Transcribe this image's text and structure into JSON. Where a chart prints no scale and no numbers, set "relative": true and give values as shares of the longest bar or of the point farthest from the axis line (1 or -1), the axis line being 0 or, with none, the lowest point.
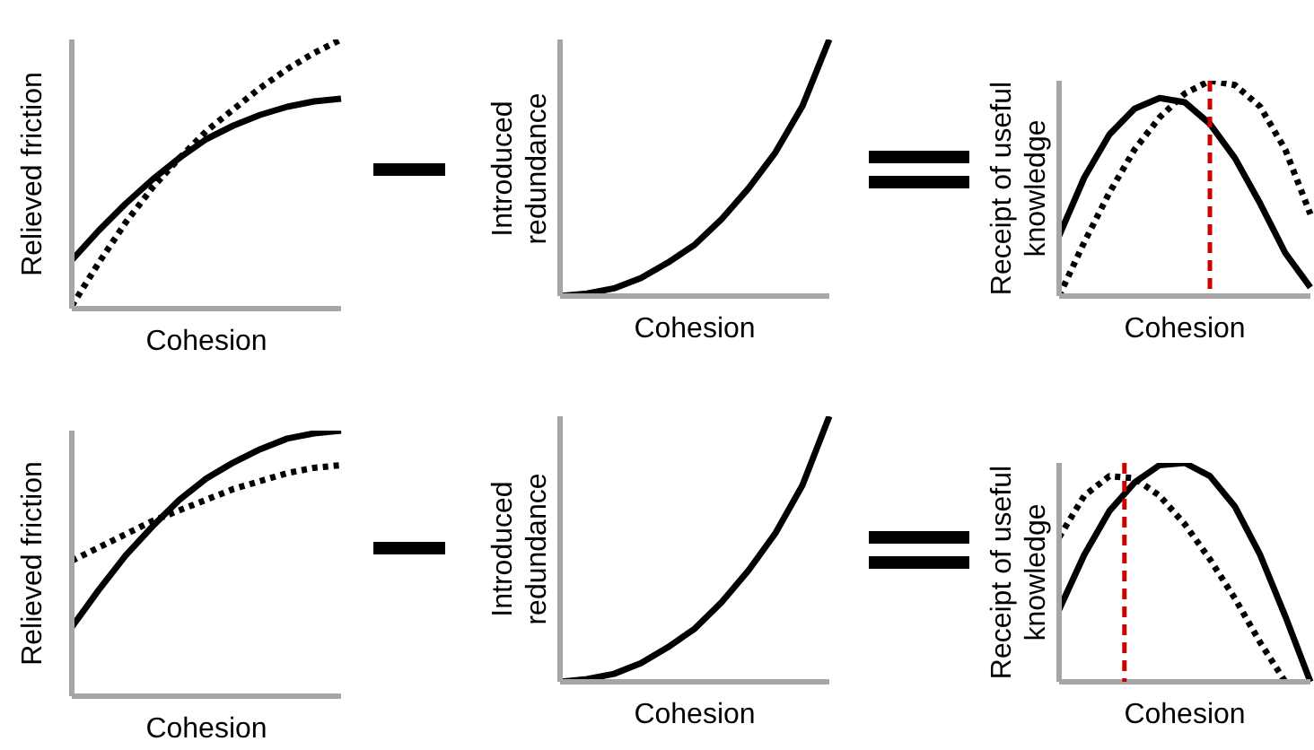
{
  "chart_data": [
    {
      "type": "line",
      "relative": true,
      "categories": [
        null,
        null,
        null,
        null,
        null,
        null,
        null,
        null,
        null,
        null,
        null
      ],
      "xlabel": "Cohesion",
      "ylabel": "Relieved friction",
      "series": [
        {
          "color": "#000000",
          "line_style": "solid",
          "values": [
            0.18,
            0.29,
            0.39,
            0.48,
            0.56,
            0.63,
            0.68,
            0.72,
            0.75,
            0.77,
            0.78
          ]
        },
        {
          "color": "#000000",
          "line_style": "dotted",
          "values": [
            0.01,
            0.17,
            0.32,
            0.45,
            0.56,
            0.66,
            0.74,
            0.82,
            0.89,
            0.95,
            1.0
          ]
        }
      ]
    },
    {
      "type": "line",
      "relative": true,
      "categories": [
        null,
        null,
        null,
        null,
        null,
        null,
        null,
        null,
        null,
        null,
        null
      ],
      "xlabel": "Cohesion",
      "ylabel": "Introduced redundance",
      "series": [
        {
          "color": "#000000",
          "line_style": "solid",
          "values": [
            0,
            0.01,
            0.03,
            0.07,
            0.13,
            0.2,
            0.3,
            0.42,
            0.56,
            0.74,
            1.0
          ]
        }
      ]
    },
    {
      "type": "line",
      "relative": true,
      "categories": [
        null,
        null,
        null,
        null,
        null,
        null,
        null,
        null,
        null,
        null,
        null
      ],
      "xlabel": "Cohesion",
      "ylabel": "Receipt of useful knowledge",
      "ref_lines": [
        {
          "axis": "x",
          "color": "#cc0000",
          "line_style": "dashed"
        }
      ],
      "series": [
        {
          "color": "#000000",
          "line_style": "solid",
          "values": [
            0.28,
            0.55,
            0.75,
            0.87,
            0.92,
            0.9,
            0.8,
            0.64,
            0.43,
            0.2,
            0.04
          ]
        },
        {
          "color": "#000000",
          "line_style": "dotted",
          "values": [
            0.0,
            0.25,
            0.48,
            0.68,
            0.83,
            0.94,
            1.0,
            0.98,
            0.88,
            0.68,
            0.38
          ]
        }
      ]
    },
    {
      "type": "line",
      "relative": true,
      "categories": [
        null,
        null,
        null,
        null,
        null,
        null,
        null,
        null,
        null,
        null,
        null
      ],
      "xlabel": "Cohesion",
      "ylabel": "Relieved friction",
      "series": [
        {
          "color": "#000000",
          "line_style": "solid",
          "values": [
            0.26,
            0.4,
            0.53,
            0.64,
            0.74,
            0.82,
            0.88,
            0.93,
            0.97,
            0.99,
            1.0
          ]
        },
        {
          "color": "#000000",
          "line_style": "dotted",
          "values": [
            0.51,
            0.56,
            0.61,
            0.66,
            0.7,
            0.74,
            0.78,
            0.81,
            0.84,
            0.86,
            0.87
          ]
        }
      ]
    },
    {
      "type": "line",
      "relative": true,
      "categories": [
        null,
        null,
        null,
        null,
        null,
        null,
        null,
        null,
        null,
        null,
        null
      ],
      "xlabel": "Cohesion",
      "ylabel": "Introduced redundance",
      "series": [
        {
          "color": "#000000",
          "line_style": "solid",
          "values": [
            0,
            0.01,
            0.03,
            0.07,
            0.13,
            0.2,
            0.3,
            0.42,
            0.56,
            0.74,
            1.0
          ]
        }
      ]
    },
    {
      "type": "line",
      "relative": true,
      "categories": [
        null,
        null,
        null,
        null,
        null,
        null,
        null,
        null,
        null,
        null,
        null
      ],
      "xlabel": "Cohesion",
      "ylabel": "Receipt of useful knowledge",
      "ref_lines": [
        {
          "axis": "x",
          "color": "#cc0000",
          "line_style": "dashed"
        }
      ],
      "series": [
        {
          "color": "#000000",
          "line_style": "solid",
          "values": [
            0.33,
            0.58,
            0.78,
            0.91,
            0.99,
            1.0,
            0.94,
            0.8,
            0.58,
            0.3,
            0.0
          ]
        },
        {
          "color": "#000000",
          "line_style": "dotted",
          "values": [
            0.66,
            0.85,
            0.94,
            0.93,
            0.85,
            0.72,
            0.56,
            0.38,
            0.18,
            0.0,
            null
          ]
        }
      ]
    }
  ]
}
